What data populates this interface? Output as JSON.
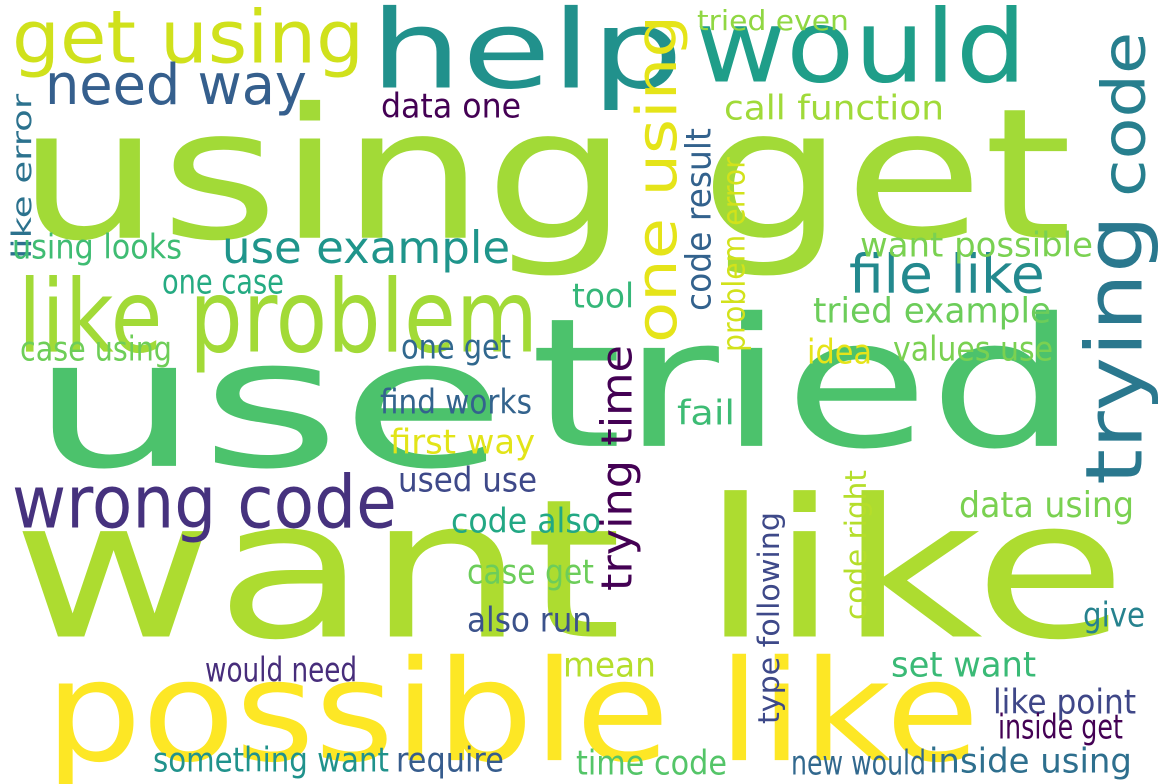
{
  "words": [
    {
      "text": "using get",
      "color": "#a2da37"
    },
    {
      "text": "use",
      "color": "#4cc26c"
    },
    {
      "text": "tried",
      "color": "#4cc26c"
    },
    {
      "text": "want like",
      "color": "#addc30"
    },
    {
      "text": "help",
      "color": "#21918c"
    },
    {
      "text": "would",
      "color": "#1f9e89"
    },
    {
      "text": "possible like",
      "color": "#fde725"
    },
    {
      "text": "like problem",
      "color": "#a2da37"
    },
    {
      "text": "get using",
      "color": "#d0e11c"
    },
    {
      "text": "wrong code",
      "color": "#46327e"
    },
    {
      "text": "need way",
      "color": "#355f8d"
    },
    {
      "text": "one using",
      "color": "#e5e419"
    },
    {
      "text": "trying",
      "color": "#2a788e"
    },
    {
      "text": "code",
      "color": "#277f8e"
    },
    {
      "text": "use example",
      "color": "#1f958b"
    },
    {
      "text": "file like",
      "color": "#23898e"
    },
    {
      "text": "trying time",
      "color": "#440154"
    },
    {
      "text": "data one",
      "color": "#440154"
    },
    {
      "text": "call function",
      "color": "#a0da39"
    },
    {
      "text": "tried even",
      "color": "#90d743"
    },
    {
      "text": "code result",
      "color": "#33628d"
    },
    {
      "text": "problem error",
      "color": "#d2e21b"
    },
    {
      "text": "want possible",
      "color": "#7ad151"
    },
    {
      "text": "tried example",
      "color": "#6ccd5a"
    },
    {
      "text": "values use",
      "color": "#7ad151"
    },
    {
      "text": "idea",
      "color": "#e5e419"
    },
    {
      "text": "like error",
      "color": "#2c728e"
    },
    {
      "text": "using looks",
      "color": "#3fbc73"
    },
    {
      "text": "one case",
      "color": "#25ab82"
    },
    {
      "text": "case using",
      "color": "#6ece58"
    },
    {
      "text": "one get",
      "color": "#31688e"
    },
    {
      "text": "tool",
      "color": "#35b779"
    },
    {
      "text": "find works",
      "color": "#33638d"
    },
    {
      "text": "fail",
      "color": "#3dbc74"
    },
    {
      "text": "first way",
      "color": "#e2e418"
    },
    {
      "text": "used use",
      "color": "#3e4989"
    },
    {
      "text": "data using",
      "color": "#7ad151"
    },
    {
      "text": "code also",
      "color": "#22a884"
    },
    {
      "text": "case get",
      "color": "#6ccd5a"
    },
    {
      "text": "also run",
      "color": "#3b528b"
    },
    {
      "text": "type following",
      "color": "#3e4989"
    },
    {
      "text": "code right",
      "color": "#b5de2b"
    },
    {
      "text": "give",
      "color": "#26828e"
    },
    {
      "text": "would need",
      "color": "#472d7b"
    },
    {
      "text": "mean",
      "color": "#b5de2b"
    },
    {
      "text": "set want",
      "color": "#3aba76"
    },
    {
      "text": "like point",
      "color": "#3f4788"
    },
    {
      "text": "inside get",
      "color": "#440154"
    },
    {
      "text": "something want",
      "color": "#20928c"
    },
    {
      "text": "require",
      "color": "#365c8d"
    },
    {
      "text": "time code",
      "color": "#54c568"
    },
    {
      "text": "new would",
      "color": "#31688e"
    },
    {
      "text": "inside using",
      "color": "#2e6f8e"
    }
  ]
}
